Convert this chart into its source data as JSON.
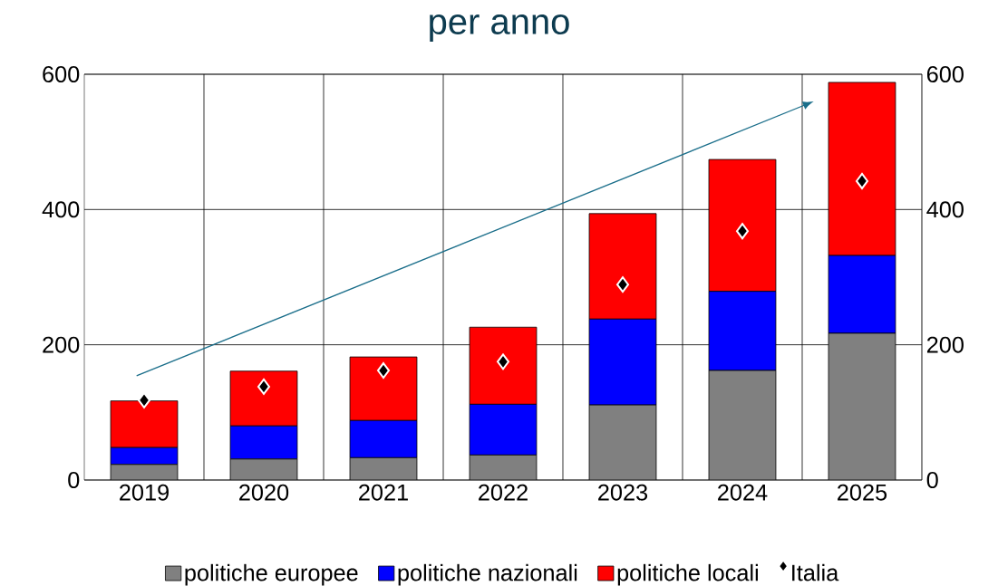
{
  "chart_data": {
    "type": "bar",
    "title": "per anno",
    "categories": [
      "2019",
      "2020",
      "2021",
      "2022",
      "2023",
      "2024",
      "2025"
    ],
    "stacked": true,
    "series": [
      {
        "name": "politiche europee",
        "color": "#808080",
        "values": [
          23,
          31,
          33,
          37,
          111,
          162,
          217
        ]
      },
      {
        "name": "politiche nazionali",
        "color": "#0000ff",
        "values": [
          25,
          49,
          55,
          75,
          127,
          117,
          115
        ]
      },
      {
        "name": "politiche locali",
        "color": "#ff0000",
        "values": [
          69,
          81,
          94,
          114,
          156,
          195,
          256
        ]
      },
      {
        "name": "Italia",
        "type": "scatter",
        "color": "#000000",
        "marker": "diamond",
        "values": [
          118,
          138,
          162,
          175,
          289,
          368,
          442
        ]
      }
    ],
    "ylim": [
      0,
      600
    ],
    "yticks": [
      0,
      200,
      400,
      600
    ],
    "y2lim": [
      0,
      600
    ],
    "y2ticks": [
      0,
      200,
      400,
      600
    ],
    "grid": true,
    "legend": "bottom"
  }
}
